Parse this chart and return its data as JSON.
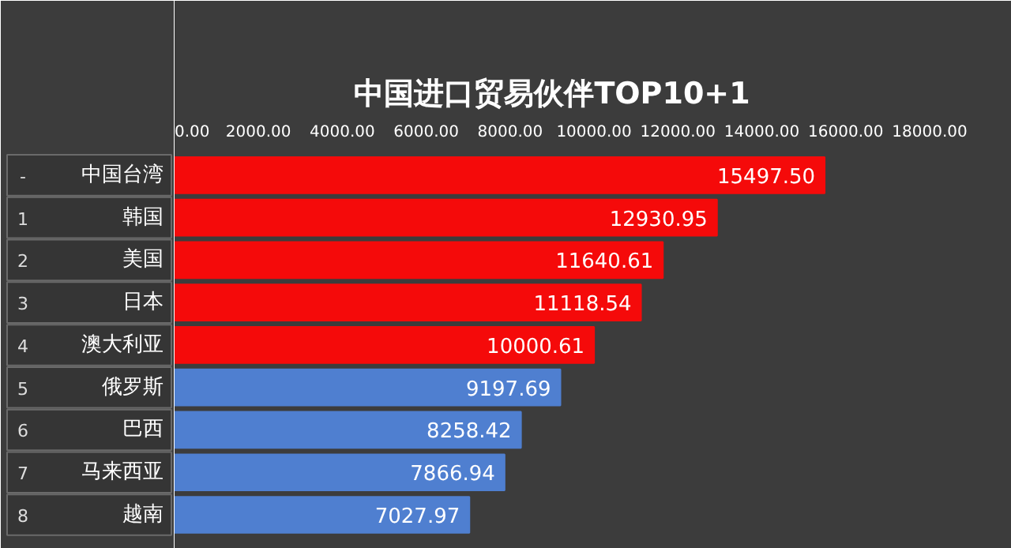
{
  "chart_data": {
    "type": "bar",
    "orientation": "horizontal",
    "title": "中国进口贸易伙伴TOP10+1",
    "categories": [
      "中国台湾",
      "韩国",
      "美国",
      "日本",
      "澳大利亚",
      "俄罗斯",
      "巴西",
      "马来西亚",
      "越南"
    ],
    "values": [
      15497.5,
      12930.95,
      11640.61,
      11118.54,
      10000.61,
      9197.69,
      8258.42,
      7866.94,
      7027.97
    ],
    "colors": [
      "#f50a0a",
      "#f50a0a",
      "#f50a0a",
      "#f50a0a",
      "#f50a0a",
      "#4f7fd0",
      "#4f7fd0",
      "#4f7fd0",
      "#4f7fd0"
    ],
    "value_labels": [
      "15497.50",
      "12930.95",
      "11640.61",
      "11118.54",
      "10000.61",
      "9197.69",
      "8258.42",
      "7866.94",
      "7027.97"
    ],
    "xlim": [
      0,
      18000
    ],
    "xticks": [
      {
        "value": 0,
        "label": "0.00"
      },
      {
        "value": 2000,
        "label": "2000.00"
      },
      {
        "value": 4000,
        "label": "4000.00"
      },
      {
        "value": 6000,
        "label": "6000.00"
      },
      {
        "value": 8000,
        "label": "8000.00"
      },
      {
        "value": 10000,
        "label": "10000.00"
      },
      {
        "value": 12000,
        "label": "12000.00"
      },
      {
        "value": 14000,
        "label": "14000.00"
      },
      {
        "value": 16000,
        "label": "16000.00"
      },
      {
        "value": 18000,
        "label": "18000.00"
      }
    ],
    "grid": false,
    "annotations": [
      "-",
      "1",
      "2",
      "3",
      "4",
      "5",
      "6",
      "7",
      "8"
    ]
  }
}
